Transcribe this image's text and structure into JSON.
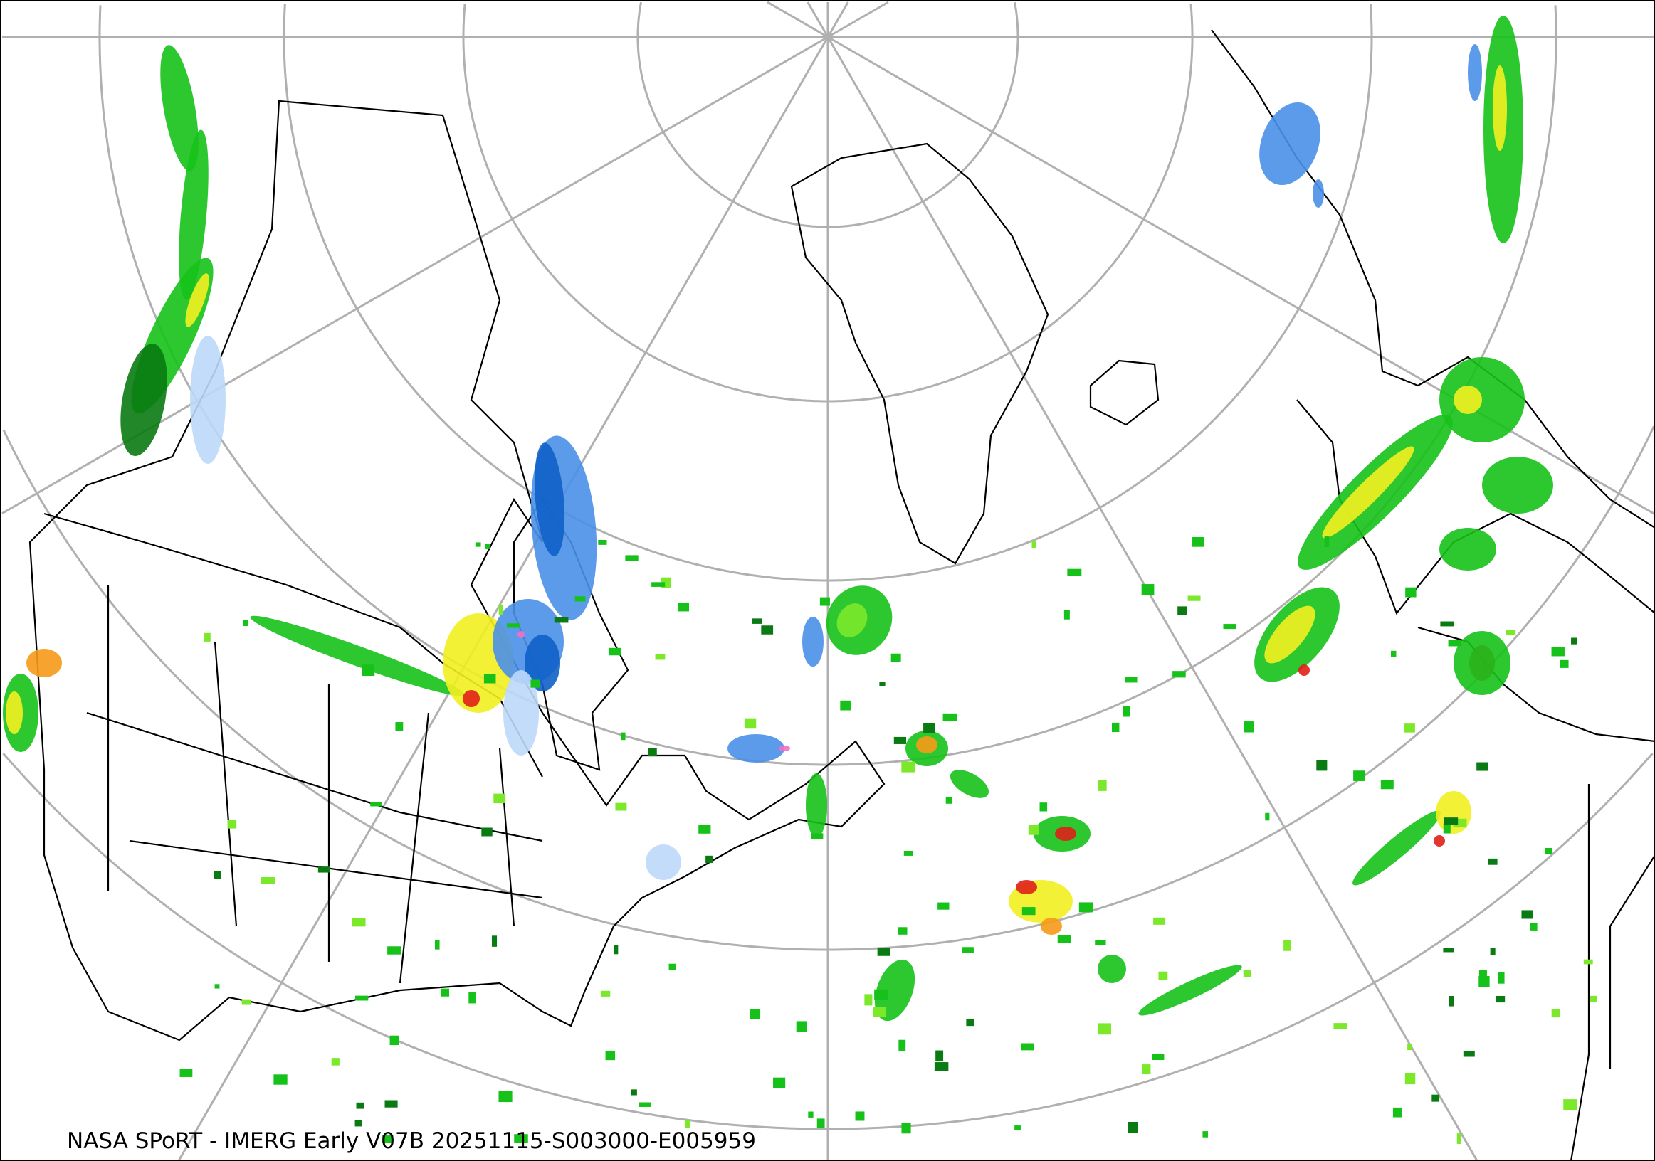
{
  "caption": "NASA SPoRT - IMERG Early V07B 20251115-S003000-E005959",
  "colors": {
    "graticule": "#b0b0b0",
    "coastline": "#000000",
    "rain_dark_green": "#0a7a12",
    "rain_green": "#16c21a",
    "rain_light_green": "#7be82a",
    "rain_yellow": "#f2f020",
    "rain_orange": "#f59a18",
    "rain_red": "#e0201a",
    "snow_light_blue": "#bcd8f8",
    "snow_blue": "#4a90e8",
    "snow_dark_blue": "#1060c8",
    "snow_pink": "#f070c8"
  }
}
